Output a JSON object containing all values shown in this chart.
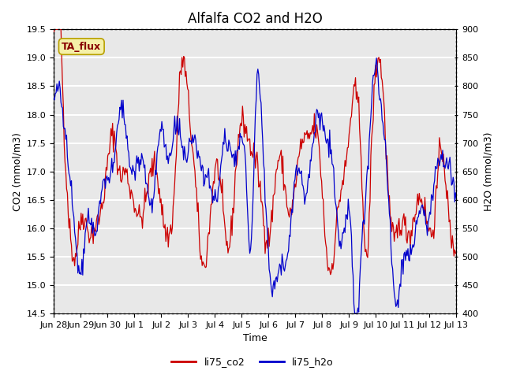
{
  "title": "Alfalfa CO2 and H2O",
  "xlabel": "Time",
  "ylabel_left": "CO2 (mmol/m3)",
  "ylabel_right": "H2O (mmol/m3)",
  "ylim_left": [
    14.5,
    19.5
  ],
  "ylim_right": [
    400,
    900
  ],
  "yticks_left": [
    14.5,
    15.0,
    15.5,
    16.0,
    16.5,
    17.0,
    17.5,
    18.0,
    18.5,
    19.0,
    19.5
  ],
  "yticks_right": [
    400,
    450,
    500,
    550,
    600,
    650,
    700,
    750,
    800,
    850,
    900
  ],
  "xtick_labels": [
    "Jun 28",
    "Jun 29",
    "Jun 30",
    "Jul 1",
    "Jul 2",
    "Jul 3",
    "Jul 4",
    "Jul 5",
    "Jul 6",
    "Jul 7",
    "Jul 8",
    "Jul 9",
    "Jul 10",
    "Jul 11",
    "Jul 12",
    "Jul 13"
  ],
  "color_co2": "#cc0000",
  "color_h2o": "#0000cc",
  "legend_label_co2": "li75_co2",
  "legend_label_h2o": "li75_h2o",
  "annotation_text": "TA_flux",
  "fig_bg_color": "#ffffff",
  "plot_bg_color": "#e8e8e8",
  "grid_color": "#ffffff",
  "title_fontsize": 12,
  "axis_label_fontsize": 9,
  "tick_fontsize": 8,
  "legend_fontsize": 9,
  "seed": 42,
  "n_points": 500
}
